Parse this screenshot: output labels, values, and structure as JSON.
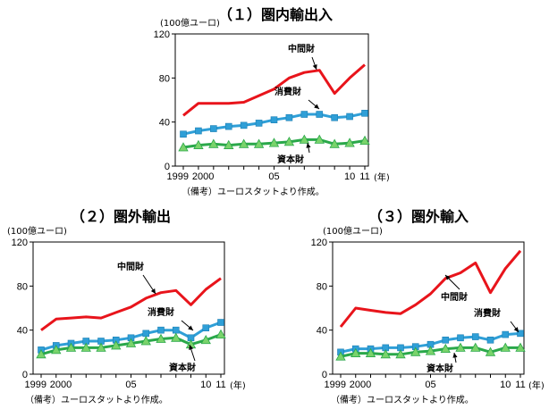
{
  "chart_data": [
    {
      "type": "line",
      "title": "（１）圏内輸出入",
      "unit": "(100億ユーロ)",
      "xunit": "(年)",
      "note": "（備考）ユーロスタットより作成。",
      "ylim": [
        0,
        120
      ],
      "yticks": [
        0,
        40,
        80,
        120
      ],
      "xlim": [
        1999,
        2011
      ],
      "x": [
        1999,
        2000,
        2001,
        2002,
        2003,
        2004,
        2005,
        2006,
        2007,
        2008,
        2009,
        2010,
        2011
      ],
      "xtick_labels": [
        {
          "x": 1999,
          "label": "1999"
        },
        {
          "x": 2000,
          "label": "2000"
        },
        {
          "x": 2005,
          "label": "05"
        },
        {
          "x": 2010,
          "label": "10"
        },
        {
          "x": 2011,
          "label": "11"
        }
      ],
      "series": [
        {
          "name": "中間財",
          "color": "#e8141b",
          "marker": "none",
          "values": [
            46,
            57,
            57,
            57,
            58,
            64,
            70,
            80,
            85,
            87,
            66,
            80,
            92
          ]
        },
        {
          "name": "消費財",
          "color": "#2f9fd7",
          "marker": "square",
          "values": [
            29,
            32,
            34,
            36,
            37,
            39,
            42,
            44,
            47,
            47,
            44,
            45,
            48
          ]
        },
        {
          "name": "資本財",
          "color": "#2aa84a",
          "marker": "triangle",
          "values": [
            17,
            19,
            20,
            19,
            20,
            20,
            21,
            22,
            24,
            24,
            20,
            21,
            23
          ]
        }
      ],
      "grid": false,
      "legend": "inline-annotations"
    },
    {
      "type": "line",
      "title": "（２）圏外輸出",
      "unit": "(100億ユーロ)",
      "xunit": "(年)",
      "note": "（備考）ユーロスタットより作成。",
      "ylim": [
        0,
        120
      ],
      "yticks": [
        0,
        40,
        80,
        120
      ],
      "xlim": [
        1999,
        2011
      ],
      "x": [
        1999,
        2000,
        2001,
        2002,
        2003,
        2004,
        2005,
        2006,
        2007,
        2008,
        2009,
        2010,
        2011
      ],
      "xtick_labels": [
        {
          "x": 1999,
          "label": "1999"
        },
        {
          "x": 2000,
          "label": "2000"
        },
        {
          "x": 2005,
          "label": "05"
        },
        {
          "x": 2010,
          "label": "10"
        },
        {
          "x": 2011,
          "label": "11"
        }
      ],
      "series": [
        {
          "name": "中間財",
          "color": "#e8141b",
          "marker": "none",
          "values": [
            40,
            50,
            51,
            52,
            51,
            56,
            61,
            69,
            74,
            76,
            63,
            77,
            87
          ]
        },
        {
          "name": "消費財",
          "color": "#2f9fd7",
          "marker": "square",
          "values": [
            22,
            26,
            28,
            30,
            30,
            31,
            33,
            37,
            40,
            40,
            33,
            42,
            47
          ]
        },
        {
          "name": "資本財",
          "color": "#2aa84a",
          "marker": "triangle",
          "values": [
            18,
            22,
            24,
            24,
            24,
            26,
            28,
            30,
            32,
            33,
            27,
            31,
            36
          ]
        }
      ],
      "grid": false,
      "legend": "inline-annotations"
    },
    {
      "type": "line",
      "title": "（３）圏外輸入",
      "unit": "(100億ユーロ)",
      "xunit": "(年)",
      "note": "（備考）ユーロスタットより作成。",
      "ylim": [
        0,
        120
      ],
      "yticks": [
        0,
        40,
        80,
        120
      ],
      "xlim": [
        1999,
        2011
      ],
      "x": [
        1999,
        2000,
        2001,
        2002,
        2003,
        2004,
        2005,
        2006,
        2007,
        2008,
        2009,
        2010,
        2011
      ],
      "xtick_labels": [
        {
          "x": 1999,
          "label": "1999"
        },
        {
          "x": 2000,
          "label": "2000"
        },
        {
          "x": 2005,
          "label": "05"
        },
        {
          "x": 2010,
          "label": "10"
        },
        {
          "x": 2011,
          "label": "11"
        }
      ],
      "series": [
        {
          "name": "中間財",
          "color": "#e8141b",
          "marker": "none",
          "values": [
            43,
            60,
            58,
            56,
            55,
            63,
            73,
            87,
            92,
            101,
            74,
            96,
            112
          ]
        },
        {
          "name": "消費財",
          "color": "#2f9fd7",
          "marker": "square",
          "values": [
            20,
            23,
            23,
            24,
            24,
            25,
            27,
            31,
            33,
            34,
            31,
            36,
            37
          ]
        },
        {
          "name": "資本財",
          "color": "#2aa84a",
          "marker": "triangle",
          "values": [
            16,
            19,
            19,
            18,
            18,
            20,
            21,
            23,
            24,
            24,
            20,
            24,
            24
          ]
        }
      ],
      "grid": false,
      "legend": "inline-annotations"
    }
  ]
}
